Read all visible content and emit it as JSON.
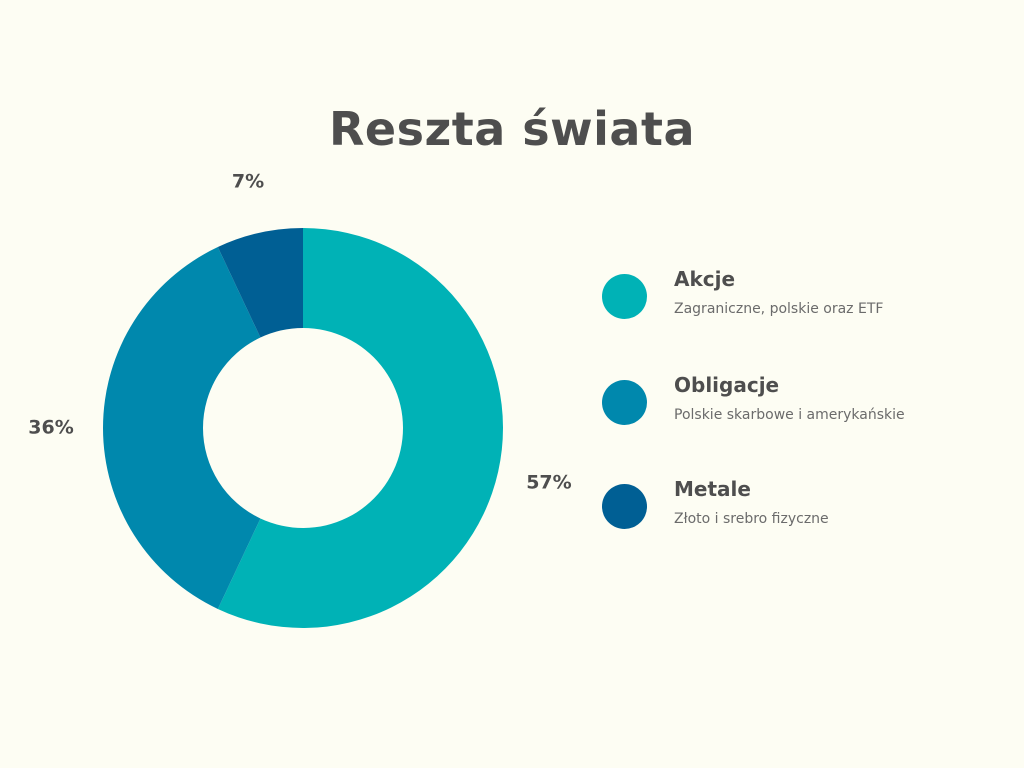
{
  "title": "Reszta świata",
  "chart_data": {
    "type": "pie",
    "variant": "donut",
    "title": "Reszta świata",
    "slices": [
      {
        "name": "Akcje",
        "description": "Zagraniczne, polskie oraz ETF",
        "value": 57,
        "label": "57%",
        "color": "#00b2b6"
      },
      {
        "name": "Obligacje",
        "description": "Polskie skarbowe i amerykańskie",
        "value": 36,
        "label": "36%",
        "color": "#0088ad"
      },
      {
        "name": "Metale",
        "description": "Złoto i srebro fizyczne",
        "value": 7,
        "label": "7%",
        "color": "#005f94"
      }
    ],
    "legend_position": "right"
  },
  "colors": {
    "background": "#fdfdf3",
    "text": "#4e4e4e"
  }
}
